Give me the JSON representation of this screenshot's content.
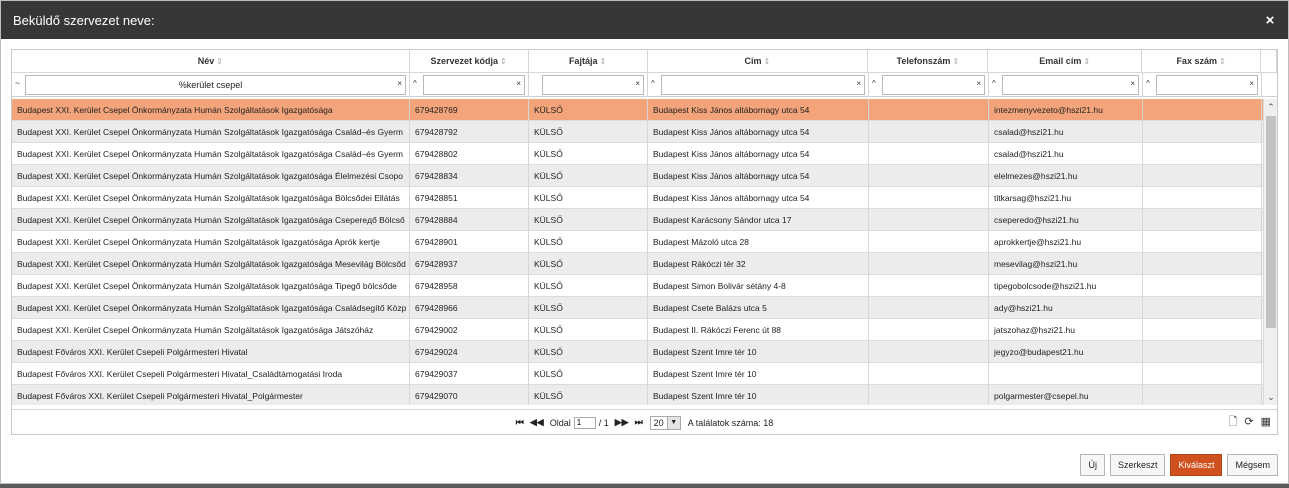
{
  "dialog": {
    "title": "Beküldő szervezet neve:",
    "close_symbol": "×"
  },
  "columns": [
    {
      "label": "Név",
      "filter_op": "~",
      "filter_value": "%kerület csepel"
    },
    {
      "label": "Szervezet kódja",
      "filter_op": "^",
      "filter_value": ""
    },
    {
      "label": "Fajtája",
      "filter_op": "",
      "filter_value": ""
    },
    {
      "label": "Cím",
      "filter_op": "^",
      "filter_value": ""
    },
    {
      "label": "Telefonszám",
      "filter_op": "^",
      "filter_value": ""
    },
    {
      "label": "Email cím",
      "filter_op": "^",
      "filter_value": ""
    },
    {
      "label": "Fax szám",
      "filter_op": "^",
      "filter_value": ""
    }
  ],
  "rows": [
    [
      "Budapest XXI. Kerület Csepel Önkormányzata Humán Szolgáltatások Igazgatósága",
      "679428769",
      "KÜLSŐ",
      "Budapest Kiss János altábornagy utca 54",
      "",
      "intezmenyvezeto@hszi21.hu",
      ""
    ],
    [
      "Budapest XXI. Kerület Csepel Önkormányzata Humán Szolgáltatások Igazgatósága Család–és Gyerm",
      "679428792",
      "KÜLSŐ",
      "Budapest Kiss János altábornagy utca 54",
      "",
      "csalad@hszi21.hu",
      ""
    ],
    [
      "Budapest XXI. Kerület Csepel Önkormányzata Humán Szolgáltatások Igazgatósága Család–és Gyerm",
      "679428802",
      "KÜLSŐ",
      "Budapest Kiss János altábornagy utca 54",
      "",
      "csalad@hszi21.hu",
      ""
    ],
    [
      "Budapest XXI. Kerület Csepel Önkormányzata Humán Szolgáltatások Igazgatósága Élelmezési Csopo",
      "679428834",
      "KÜLSŐ",
      "Budapest Kiss János altábornagy utca 54",
      "",
      "elelmezes@hszi21.hu",
      ""
    ],
    [
      "Budapest XXI. Kerület Csepel Önkormányzata Humán Szolgáltatások Igazgatósága Bölcsődei Ellátás",
      "679428851",
      "KÜLSŐ",
      "Budapest Kiss János altábornagy utca 54",
      "",
      "titkarsag@hszi21.hu",
      ""
    ],
    [
      "Budapest XXI. Kerület Csepel Önkormányzata Humán Szolgáltatások Igazgatósága Csepereдő Bölcső",
      "679428884",
      "KÜLSŐ",
      "Budapest Karácsony Sándor utca 17",
      "",
      "cseperedo@hszi21.hu",
      ""
    ],
    [
      "Budapest XXI. Kerület Csepel Önkormányzata Humán Szolgáltatások Igazgatósága Aprók kertje",
      "679428901",
      "KÜLSŐ",
      "Budapest Mázoló utca 28",
      "",
      "aprokkertje@hszi21.hu",
      ""
    ],
    [
      "Budapest XXI. Kerület Csepel Önkormányzata Humán Szolgáltatások Igazgatósága Mesevilág Bölcsőd",
      "679428937",
      "KÜLSŐ",
      "Budapest Rákóczi tér 32",
      "",
      "mesevilag@hszi21.hu",
      ""
    ],
    [
      "Budapest XXI. Kerület Csepel Önkormányzata Humán Szolgáltatások Igazgatósága Tipegő bölcsőde",
      "679428958",
      "KÜLSŐ",
      "Budapest Simon Bolivár  sétány 4-8",
      "",
      "tipegobolcsode@hszi21.hu",
      ""
    ],
    [
      "Budapest XXI. Kerület Csepel Önkormányzata Humán Szolgáltatások Igazgatósága Családsegítő Közp",
      "679428966",
      "KÜLSŐ",
      "Budapest Csete Balázs  utca 5",
      "",
      "ady@hszi21.hu",
      ""
    ],
    [
      "Budapest XXI. Kerület Csepel Önkormányzata Humán Szolgáltatások Igazgatósága Játszóház",
      "679429002",
      "KÜLSŐ",
      "Budapest II. Rákóczi Ferenc út 88",
      "",
      "jatszohaz@hszi21.hu",
      ""
    ],
    [
      "Budapest Főváros XXI. Kerület Csepeli Polgármesteri Hivatal",
      "679429024",
      "KÜLSŐ",
      "Budapest Szent Imre tér 10",
      "",
      "jegyzo@budapest21.hu",
      ""
    ],
    [
      "Budapest Főváros XXI. Kerület Csepeli Polgármesteri Hivatal_Családtámogatási Iroda",
      "679429037",
      "KÜLSŐ",
      "Budapest Szent Imre tér 10",
      "",
      "",
      ""
    ],
    [
      "Budapest Főváros XXI. Kerület Csepeli Polgármesteri Hivatal_Polgármester",
      "679429070",
      "KÜLSŐ",
      "Budapest Szent Imre tér 10",
      "",
      "polgarmester@csepel.hu",
      ""
    ]
  ],
  "selected_row": 0,
  "pager": {
    "first": "⏮",
    "prev": "◀◀",
    "page_label": "Oldal",
    "page_value": "1",
    "of_total": "/ 1",
    "next": "▶▶",
    "last": "⏭",
    "page_size": "20",
    "results_text": "A találatok száma: 18"
  },
  "buttons": {
    "new": "Új",
    "edit": "Szerkeszt",
    "select": "Kiválaszt",
    "cancel": "Mégsem"
  }
}
